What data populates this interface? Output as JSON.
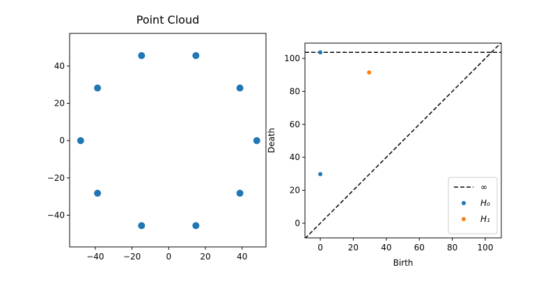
{
  "chart_data": [
    {
      "type": "scatter",
      "title": "Point Cloud",
      "xlim": [
        -54,
        53
      ],
      "ylim": [
        -57,
        57.5
      ],
      "xticks": [
        {
          "value": -40,
          "label": "−40"
        },
        {
          "value": -20,
          "label": "−20"
        },
        0,
        20,
        40
      ],
      "yticks": [
        {
          "value": -40,
          "label": "−40"
        },
        {
          "value": -20,
          "label": "−20"
        },
        0,
        20,
        40
      ],
      "series": [
        {
          "color": "#1f77b4",
          "x": [
            48,
            38.8,
            14.8,
            -14.8,
            -38.8,
            -48,
            -38.8,
            -14.8,
            14.8,
            38.8
          ],
          "values": [
            0,
            28.2,
            45.6,
            45.6,
            28.2,
            0,
            -28.2,
            -45.6,
            -45.6,
            -28.2
          ]
        }
      ]
    },
    {
      "type": "scatter",
      "xlabel": "Birth",
      "ylabel": "Death",
      "xlim": [
        -9.3,
        109.7
      ],
      "ylim": [
        -8.9,
        109.3
      ],
      "xticks": [
        0,
        20,
        40,
        60,
        80,
        100
      ],
      "yticks": [
        0,
        20,
        40,
        60,
        80,
        100
      ],
      "infinity": 103.7,
      "infinity_label": "∞",
      "diagonal": true,
      "legend": "lower right",
      "series": [
        {
          "name": "H₀",
          "color": "#1f77b4",
          "x": [
            0,
            0
          ],
          "values": [
            103.7,
            29.8
          ]
        },
        {
          "name": "H₁",
          "color": "#ff7f0e",
          "x": [
            29.6
          ],
          "values": [
            91.5
          ]
        }
      ]
    }
  ]
}
